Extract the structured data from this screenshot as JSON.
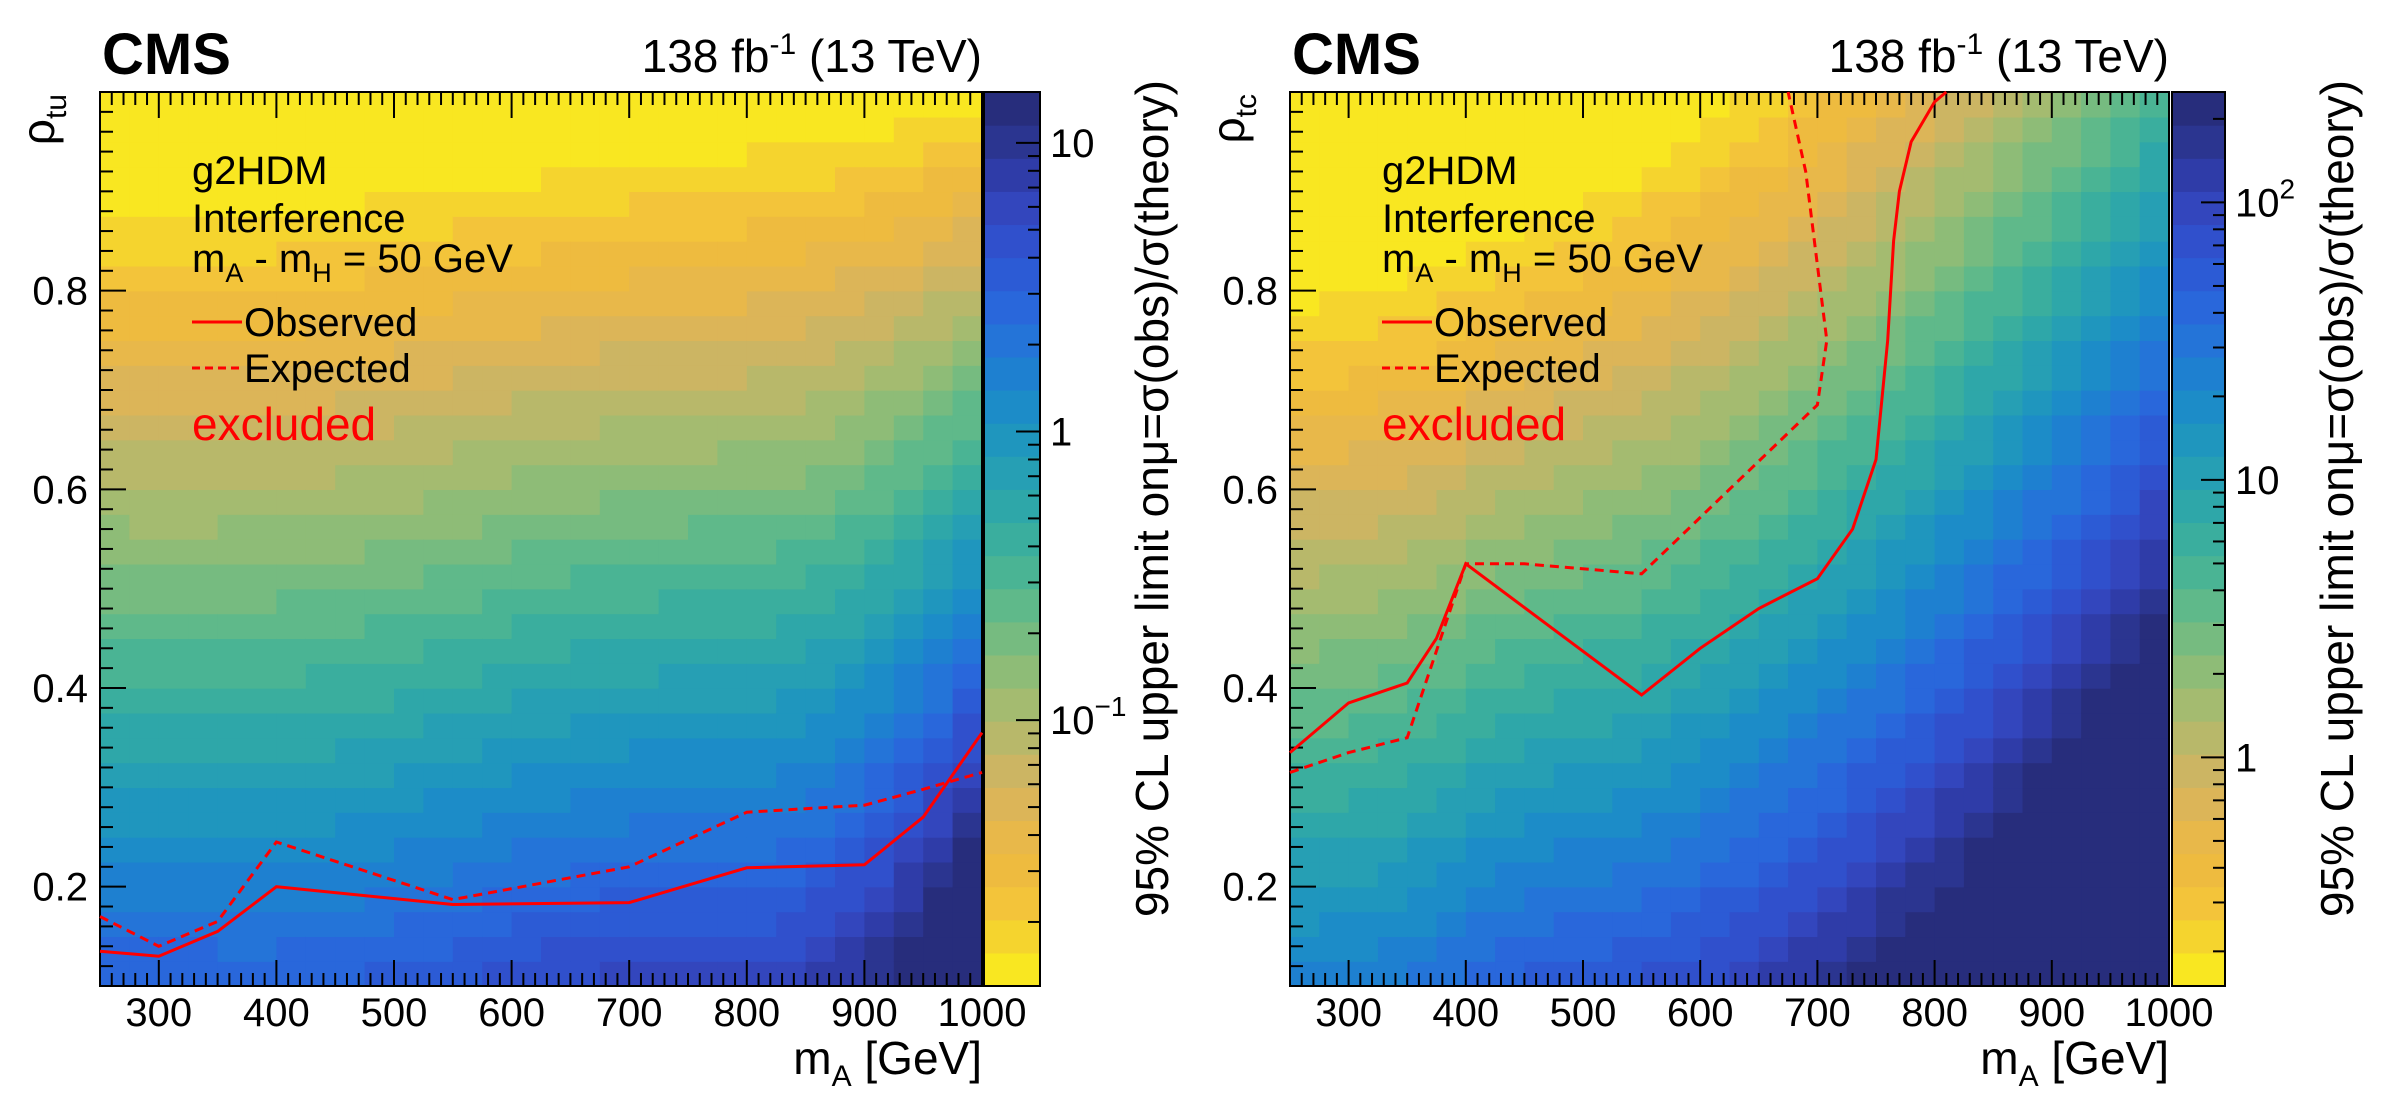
{
  "chart_data": [
    {
      "type": "heatmap",
      "experiment": "CMS",
      "luminosity_label": "138 fb",
      "luminosity_exponent": "-1",
      "energy_label": "(13 TeV)",
      "xlabel_main": "m",
      "xlabel_sub": "A",
      "xlabel_unit": "[GeV]",
      "ylabel_main": "ρ",
      "ylabel_sub": "tu",
      "zlabel": "95% CL upper limit onμ=σ(obs)/σ(theory)",
      "xlim": [
        250,
        1000
      ],
      "ylim": [
        0.1,
        1.0
      ],
      "x_ticks": [
        "300",
        "400",
        "500",
        "600",
        "700",
        "800",
        "900",
        "1000"
      ],
      "y_ticks": [
        "0.2",
        "0.4",
        "0.6",
        "0.8"
      ],
      "z_scale": "log",
      "zlim": [
        0.012,
        15
      ],
      "z_ticks": [
        {
          "label": "10",
          "value": 10
        },
        {
          "label": "1",
          "value": 1
        },
        {
          "label": "10",
          "sup": "−1",
          "value": 0.1
        }
      ],
      "legend": {
        "model": "g2HDM",
        "scenario": "Interference",
        "mass_text_a": "m",
        "mass_sub_a": "A",
        "mass_text_b": " - m",
        "mass_sub_b": "H",
        "mass_text_c": " = 50 GeV",
        "observed": "Observed",
        "expected": "Expected",
        "excluded": "excluded"
      },
      "series": [
        {
          "name": "Observed",
          "style": "solid",
          "color": "#ff0000",
          "x": [
            250,
            300,
            350,
            400,
            550,
            700,
            800,
            900,
            950,
            1000
          ],
          "y": [
            0.135,
            0.13,
            0.155,
            0.2,
            0.182,
            0.184,
            0.219,
            0.222,
            0.27,
            0.355
          ]
        },
        {
          "name": "Expected",
          "style": "dashed",
          "color": "#ff0000",
          "x": [
            250,
            300,
            350,
            400,
            550,
            700,
            800,
            900,
            950,
            1000
          ],
          "y": [
            0.17,
            0.14,
            0.165,
            0.245,
            0.187,
            0.22,
            0.275,
            0.282,
            0.298,
            0.315
          ]
        }
      ]
    },
    {
      "type": "heatmap",
      "experiment": "CMS",
      "luminosity_label": "138 fb",
      "luminosity_exponent": "-1",
      "energy_label": "(13 TeV)",
      "xlabel_main": "m",
      "xlabel_sub": "A",
      "xlabel_unit": "[GeV]",
      "ylabel_main": "ρ",
      "ylabel_sub": "tc",
      "zlabel": "95% CL upper limit onμ=σ(obs)/σ(theory)",
      "xlim": [
        250,
        1000
      ],
      "ylim": [
        0.1,
        1.0
      ],
      "x_ticks": [
        "300",
        "400",
        "500",
        "600",
        "700",
        "800",
        "900",
        "1000"
      ],
      "y_ticks": [
        "0.2",
        "0.4",
        "0.6",
        "0.8"
      ],
      "z_scale": "log",
      "zlim": [
        0.15,
        250
      ],
      "z_ticks": [
        {
          "label": "10",
          "sup": "2",
          "value": 100
        },
        {
          "label": "10",
          "value": 10
        },
        {
          "label": "1",
          "value": 1
        }
      ],
      "legend": {
        "model": "g2HDM",
        "scenario": "Interference",
        "mass_text_a": "m",
        "mass_sub_a": "A",
        "mass_text_b": " - m",
        "mass_sub_b": "H",
        "mass_text_c": " = 50 GeV",
        "observed": "Observed",
        "expected": "Expected",
        "excluded": "excluded"
      },
      "series": [
        {
          "name": "Observed",
          "style": "solid",
          "color": "#ff0000",
          "x": [
            250,
            300,
            350,
            375,
            400,
            550,
            600,
            650,
            700,
            730,
            750,
            760,
            765,
            770,
            780,
            800,
            810
          ],
          "y": [
            0.335,
            0.385,
            0.405,
            0.45,
            0.525,
            0.393,
            0.44,
            0.48,
            0.51,
            0.56,
            0.63,
            0.75,
            0.85,
            0.9,
            0.95,
            0.99,
            1.0
          ]
        },
        {
          "name": "Expected",
          "style": "dashed",
          "color": "#ff0000",
          "x": [
            250,
            300,
            350,
            400,
            450,
            550,
            625,
            700,
            708,
            690,
            675
          ],
          "y": [
            0.315,
            0.335,
            0.35,
            0.525,
            0.525,
            0.515,
            0.6,
            0.685,
            0.75,
            0.92,
            1.0
          ]
        }
      ]
    }
  ]
}
